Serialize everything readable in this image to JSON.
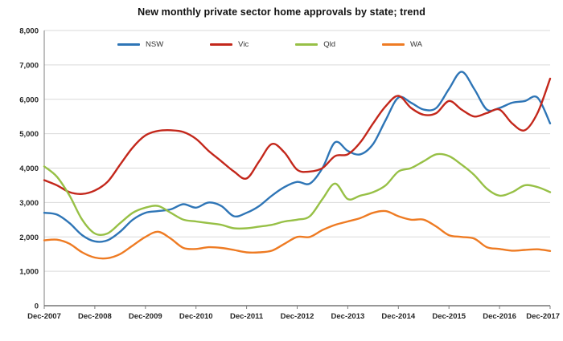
{
  "page": {
    "background": "#FFFFFF"
  },
  "chart_data": {
    "type": "line",
    "title": "New monthly private sector home approvals by state; trend",
    "xlabel": "",
    "ylabel": "",
    "x_tick_labels": [
      "Dec-2007",
      "Dec-2008",
      "Dec-2009",
      "Dec-2010",
      "Dec-2011",
      "Dec-2012",
      "Dec-2013",
      "Dec-2014",
      "Dec-2015",
      "Dec-2016",
      "Dec-2017"
    ],
    "points_per_tick": 4,
    "x_note": "values are quarterly samples of the monthly trend from Dec-2007 to Dec-2017",
    "ylim": [
      0,
      8000
    ],
    "ytick_step": 1000,
    "grid": "horizontal",
    "legend_position": "top",
    "series": [
      {
        "name": "NSW",
        "color": "#2E75B6",
        "values": [
          2700,
          2650,
          2400,
          2050,
          1870,
          1900,
          2150,
          2500,
          2700,
          2750,
          2800,
          2950,
          2850,
          3000,
          2900,
          2600,
          2700,
          2900,
          3200,
          3450,
          3600,
          3550,
          4000,
          4750,
          4500,
          4400,
          4700,
          5400,
          6050,
          5900,
          5700,
          5750,
          6300,
          6800,
          6300,
          5700,
          5750,
          5900,
          5950,
          6050,
          5300
        ]
      },
      {
        "name": "Vic",
        "color": "#C3271B",
        "values": [
          3650,
          3500,
          3300,
          3250,
          3350,
          3600,
          4100,
          4600,
          4950,
          5080,
          5100,
          5050,
          4850,
          4500,
          4200,
          3900,
          3700,
          4200,
          4700,
          4450,
          3950,
          3900,
          4000,
          4350,
          4400,
          4750,
          5300,
          5800,
          6100,
          5750,
          5550,
          5600,
          5950,
          5700,
          5500,
          5600,
          5700,
          5300,
          5100,
          5600,
          6600
        ]
      },
      {
        "name": "Qld",
        "color": "#97C046",
        "values": [
          4050,
          3750,
          3200,
          2500,
          2100,
          2100,
          2400,
          2700,
          2850,
          2900,
          2700,
          2500,
          2450,
          2400,
          2350,
          2250,
          2250,
          2300,
          2350,
          2450,
          2500,
          2600,
          3100,
          3550,
          3100,
          3200,
          3300,
          3500,
          3900,
          4000,
          4200,
          4400,
          4350,
          4100,
          3800,
          3400,
          3200,
          3300,
          3500,
          3450,
          3300
        ]
      },
      {
        "name": "WA",
        "color": "#EE7B23",
        "values": [
          1900,
          1920,
          1800,
          1550,
          1400,
          1380,
          1500,
          1750,
          2000,
          2150,
          1950,
          1680,
          1650,
          1700,
          1680,
          1620,
          1550,
          1550,
          1600,
          1800,
          2000,
          2000,
          2200,
          2350,
          2450,
          2550,
          2700,
          2750,
          2600,
          2500,
          2500,
          2300,
          2050,
          2000,
          1950,
          1700,
          1650,
          1600,
          1620,
          1640,
          1590
        ]
      }
    ]
  }
}
